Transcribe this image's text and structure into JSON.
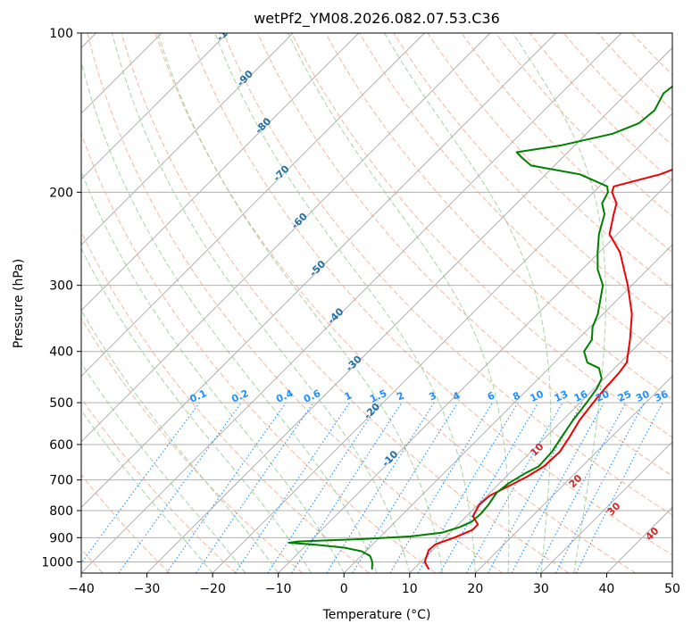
{
  "chart_data": {
    "type": "line",
    "subtype": "skew-t log-p",
    "title": "wetPf2_YM08.2026.082.07.53.C36",
    "xlabel": "Temperature (°C)",
    "ylabel": "Pressure (hPa)",
    "xlim": [
      -40,
      50
    ],
    "ylim": [
      1050,
      100
    ],
    "x_ticks": [
      -40,
      -30,
      -20,
      -10,
      0,
      10,
      20,
      30,
      40,
      50
    ],
    "x_tick_labels": [
      "−40",
      "−30",
      "−20",
      "−10",
      "0",
      "10",
      "20",
      "30",
      "40",
      "50"
    ],
    "y_ticks": [
      100,
      200,
      300,
      400,
      500,
      600,
      700,
      800,
      900,
      1000
    ],
    "y_tick_labels": [
      "100",
      "200",
      "300",
      "400",
      "500",
      "600",
      "700",
      "800",
      "900",
      "1000"
    ],
    "grid": true,
    "series": [
      {
        "name": "Temperature",
        "color": "#ee0000",
        "points": [
          [
            1030,
            12.2
          ],
          [
            1000,
            10.6
          ],
          [
            950,
            9.4
          ],
          [
            925,
            9.6
          ],
          [
            900,
            11.4
          ],
          [
            870,
            13.0
          ],
          [
            850,
            13.0
          ],
          [
            820,
            11.0
          ],
          [
            780,
            10.2
          ],
          [
            750,
            10.4
          ],
          [
            720,
            11.8
          ],
          [
            690,
            13.2
          ],
          [
            660,
            14.2
          ],
          [
            620,
            14.4
          ],
          [
            580,
            13.6
          ],
          [
            540,
            12.6
          ],
          [
            500,
            12.0
          ],
          [
            470,
            11.6
          ],
          [
            440,
            11.4
          ],
          [
            420,
            11.0
          ],
          [
            380,
            8.0
          ],
          [
            340,
            4.4
          ],
          [
            300,
            -0.6
          ],
          [
            260,
            -6.8
          ],
          [
            240,
            -11.2
          ],
          [
            220,
            -13.6
          ],
          [
            210,
            -14.8
          ],
          [
            200,
            -17.2
          ],
          [
            195,
            -17.8
          ],
          [
            185,
            -12.6
          ],
          [
            175,
            -9.4
          ],
          [
            165,
            -8.2
          ],
          [
            150,
            -9.0
          ],
          [
            140,
            -9.6
          ],
          [
            130,
            -10.4
          ],
          [
            120,
            -11.0
          ],
          [
            110,
            -11.4
          ],
          [
            100,
            -11.4
          ]
        ]
      },
      {
        "name": "Dewpoint",
        "color": "#008000",
        "points": [
          [
            1030,
            3.6
          ],
          [
            1000,
            2.6
          ],
          [
            975,
            1.4
          ],
          [
            955,
            -0.6
          ],
          [
            940,
            -3.8
          ],
          [
            928,
            -8.6
          ],
          [
            920,
            -13.0
          ],
          [
            915,
            -11.8
          ],
          [
            905,
            -2.0
          ],
          [
            895,
            4.6
          ],
          [
            880,
            8.8
          ],
          [
            860,
            10.6
          ],
          [
            840,
            11.6
          ],
          [
            810,
            11.8
          ],
          [
            780,
            11.6
          ],
          [
            740,
            11.0
          ],
          [
            710,
            11.4
          ],
          [
            680,
            12.4
          ],
          [
            660,
            13.4
          ],
          [
            620,
            13.2
          ],
          [
            580,
            12.4
          ],
          [
            540,
            11.6
          ],
          [
            500,
            11.0
          ],
          [
            470,
            10.4
          ],
          [
            450,
            9.6
          ],
          [
            430,
            7.6
          ],
          [
            420,
            5.0
          ],
          [
            400,
            2.8
          ],
          [
            380,
            2.2
          ],
          [
            360,
            0.4
          ],
          [
            340,
            -0.8
          ],
          [
            300,
            -4.4
          ],
          [
            280,
            -7.6
          ],
          [
            260,
            -10.2
          ],
          [
            240,
            -12.8
          ],
          [
            220,
            -15.0
          ],
          [
            210,
            -17.0
          ],
          [
            200,
            -17.8
          ],
          [
            195,
            -18.8
          ],
          [
            185,
            -24.8
          ],
          [
            178,
            -33.6
          ],
          [
            172,
            -36.2
          ],
          [
            168,
            -37.8
          ],
          [
            163,
            -32.0
          ],
          [
            155,
            -26.0
          ],
          [
            148,
            -23.6
          ],
          [
            140,
            -23.2
          ],
          [
            130,
            -24.4
          ],
          [
            120,
            -23.6
          ],
          [
            110,
            -21.6
          ],
          [
            100,
            -20.8
          ]
        ]
      }
    ],
    "background_lines": {
      "isotherms_c": [
        -100,
        -90,
        -80,
        -70,
        -60,
        -50,
        -40,
        -30,
        -20,
        -10,
        0,
        10,
        20,
        30,
        40,
        50
      ],
      "dry_adiabats_c": [
        -60,
        -50,
        -40,
        -30,
        -20,
        -10,
        0,
        10,
        20,
        30,
        40,
        50,
        60,
        70,
        80,
        90,
        100,
        110,
        120,
        130,
        140,
        150,
        160,
        170,
        180
      ],
      "moist_adiabats_c": [
        -20,
        -15,
        -10,
        -5,
        0,
        5,
        10,
        15,
        20,
        25,
        30,
        35
      ],
      "mixing_ratios_gkg": [
        0.1,
        0.2,
        0.4,
        0.6,
        1,
        1.5,
        2,
        3,
        4,
        6,
        8,
        10,
        13,
        16,
        20,
        25,
        30,
        36
      ],
      "mixing_ratio_label_pressure": 500
    },
    "annotations": {
      "isotherm_labels": [
        {
          "text": "-100",
          "t": -100
        },
        {
          "text": "-90",
          "t": -90
        },
        {
          "text": "-80",
          "t": -80
        },
        {
          "text": "-70",
          "t": -70
        },
        {
          "text": "-60",
          "t": -60
        },
        {
          "text": "-50",
          "t": -50
        },
        {
          "text": "-40",
          "t": -40
        },
        {
          "text": "-30",
          "t": -30
        },
        {
          "text": "-20",
          "t": -20
        },
        {
          "text": "-10",
          "t": -10
        }
      ],
      "zero_isotherm_label": {
        "text": "0",
        "p": 510
      },
      "warm_isotherm_labels": [
        {
          "text": "10",
          "p": 610
        },
        {
          "text": "20",
          "p": 700
        },
        {
          "text": "30",
          "p": 790
        },
        {
          "text": "40",
          "p": 880
        }
      ],
      "mixing_ratio_labels": [
        "0.1",
        "0.2",
        "0.4",
        "0.6",
        "1",
        "1.5",
        "2",
        "3",
        "4",
        "6",
        "8",
        "10",
        "13",
        "16",
        "20",
        "25",
        "30",
        "36"
      ]
    },
    "colors": {
      "temperature": "#ee0000",
      "dewpoint": "#008000",
      "isotherm": "#a9a9a9",
      "isotherm_label": "#1f6fa8",
      "dry_adiabat": "#f4a582",
      "moist_adiabat": "#8fc98f",
      "mixing_ratio": "#1e90ff",
      "warm_label": "#d62728",
      "zero_label": "#808080",
      "grid": "#b0b0b0"
    }
  }
}
